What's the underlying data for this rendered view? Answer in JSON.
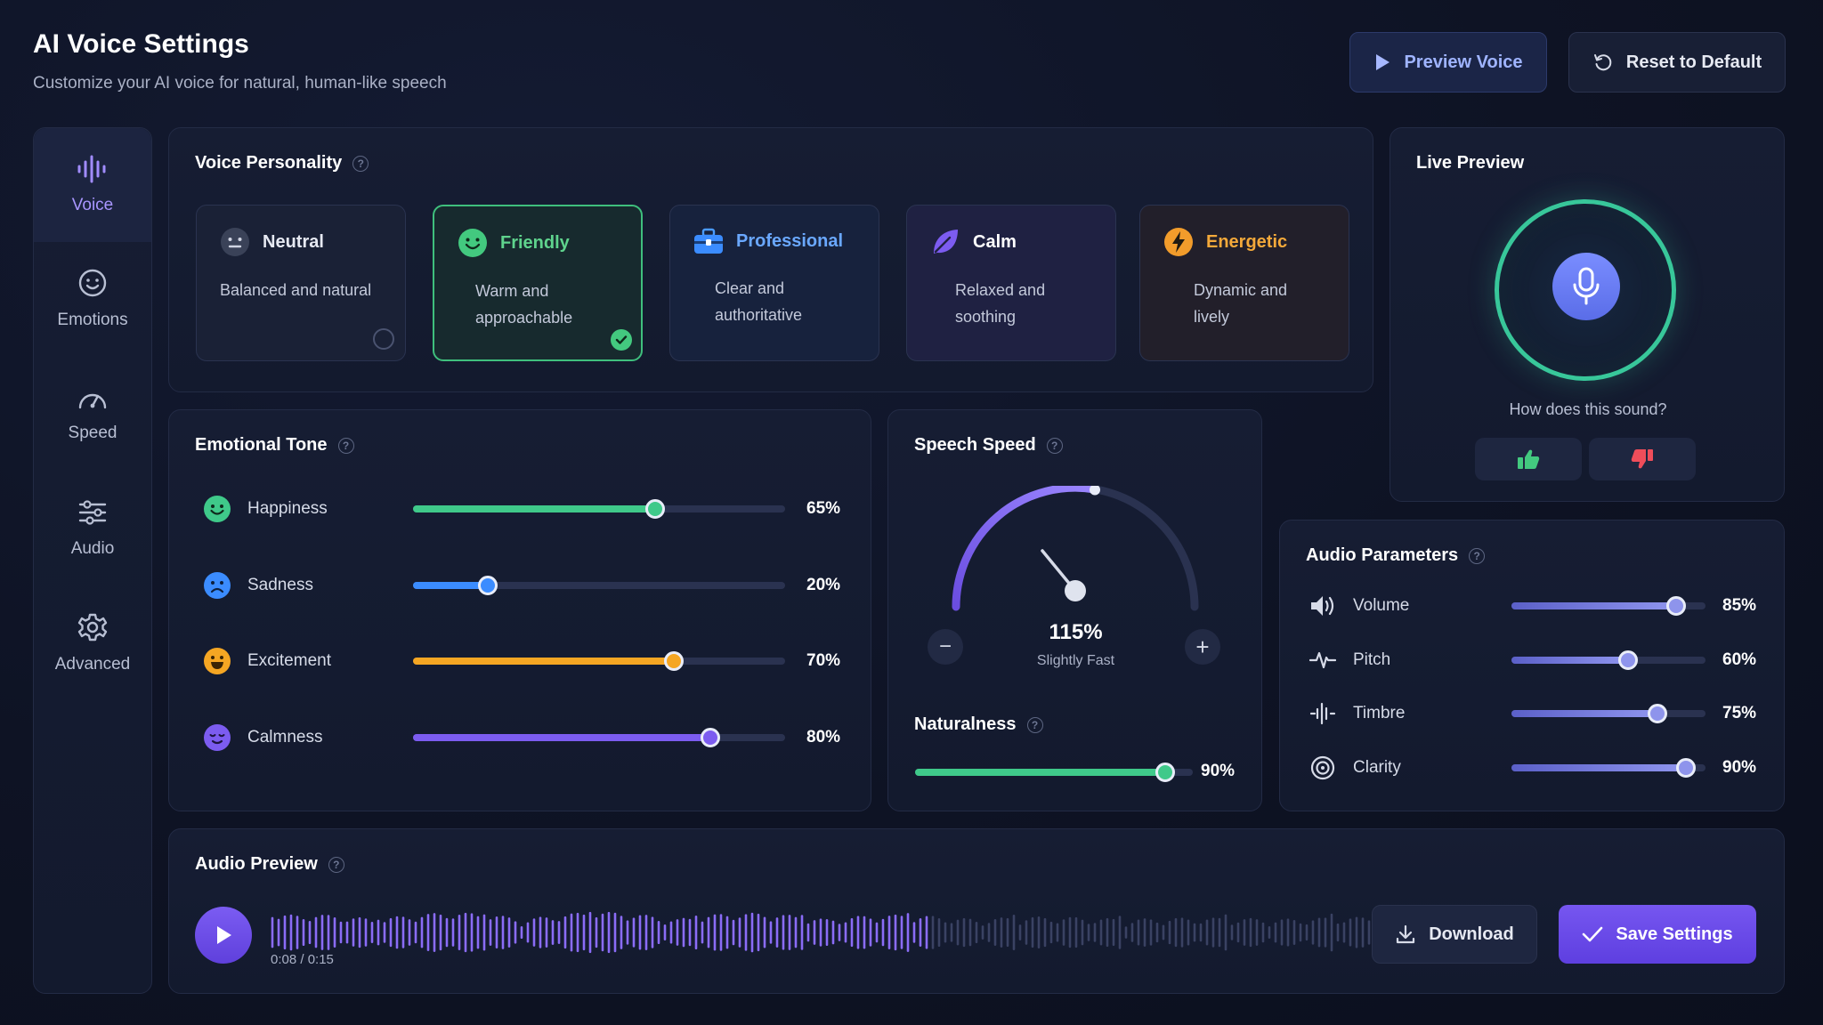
{
  "header": {
    "title": "AI Voice Settings",
    "subtitle": "Customize your AI voice for natural, human-like speech",
    "preview_label": "Preview Voice",
    "reset_label": "Reset to Default"
  },
  "sidebar": {
    "items": [
      {
        "label": "Voice",
        "icon": "waveform-icon",
        "active": true
      },
      {
        "label": "Emotions",
        "icon": "smiley-icon"
      },
      {
        "label": "Speed",
        "icon": "speedometer-icon"
      },
      {
        "label": "Audio",
        "icon": "sliders-icon"
      },
      {
        "label": "Advanced",
        "icon": "gear-icon"
      }
    ]
  },
  "personality": {
    "title": "Voice Personality",
    "help": "?",
    "cards": [
      {
        "name": "Neutral",
        "desc": "Balanced and natural",
        "color": "#cfd4e2",
        "selected": false
      },
      {
        "name": "Friendly",
        "desc": "Warm and approachable",
        "color": "#5fd38d",
        "selected": true
      },
      {
        "name": "Professional",
        "desc": "Clear and authoritative",
        "color": "#6aa8ff",
        "selected": false
      },
      {
        "name": "Calm",
        "desc": "Relaxed and soothing",
        "color": "#8b6cf6",
        "selected": false
      },
      {
        "name": "Energetic",
        "desc": "Dynamic and lively",
        "color": "#f4a93a",
        "selected": false
      }
    ]
  },
  "emotional_tone": {
    "title": "Emotional Tone",
    "help": "?",
    "rows": [
      {
        "label": "Happiness",
        "value": 65,
        "value_text": "65%",
        "color": "#3fc98a"
      },
      {
        "label": "Sadness",
        "value": 20,
        "value_text": "20%",
        "color": "#3b8cff"
      },
      {
        "label": "Excitement",
        "value": 70,
        "value_text": "70%",
        "color": "#f5a623"
      },
      {
        "label": "Calmness",
        "value": 80,
        "value_text": "80%",
        "color": "#7c5cf0"
      }
    ]
  },
  "speech_speed": {
    "title": "Speech Speed",
    "help": "?",
    "value_text": "115%",
    "caption": "Slightly Fast",
    "minus": "−",
    "plus": "+",
    "naturalness_title": "Naturalness",
    "naturalness_value": 90,
    "naturalness_text": "90%"
  },
  "live_preview": {
    "title": "Live Preview",
    "question": "How does this sound?"
  },
  "audio_params": {
    "title": "Audio Parameters",
    "help": "?",
    "rows": [
      {
        "label": "Volume",
        "icon": "speaker-icon",
        "value": 85,
        "value_text": "85%"
      },
      {
        "label": "Pitch",
        "icon": "pitch-wave-icon",
        "value": 60,
        "value_text": "60%"
      },
      {
        "label": "Timbre",
        "icon": "timbre-wave-icon",
        "value": 75,
        "value_text": "75%"
      },
      {
        "label": "Clarity",
        "icon": "target-icon",
        "value": 90,
        "value_text": "90%"
      }
    ]
  },
  "audio_preview": {
    "title": "Audio Preview",
    "help": "?",
    "time": "0:08 / 0:15",
    "progress": 0.53,
    "download_label": "Download",
    "save_label": "Save Settings"
  }
}
